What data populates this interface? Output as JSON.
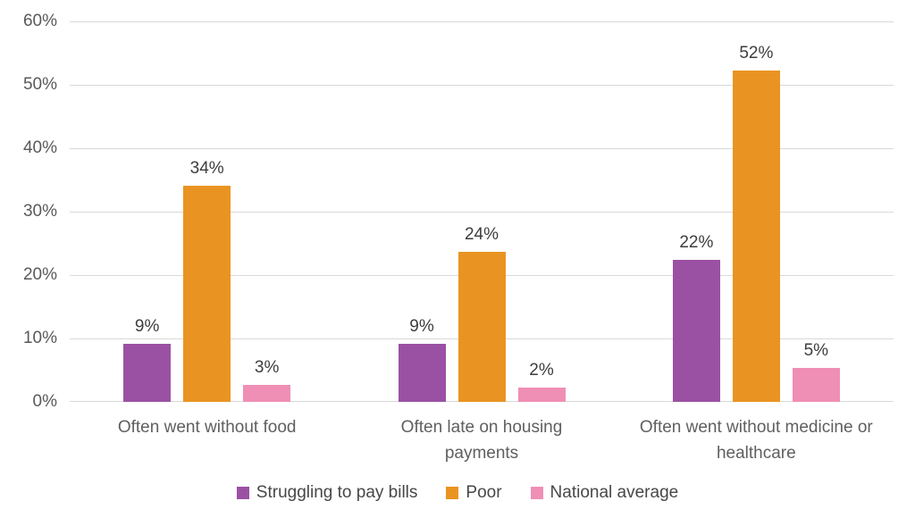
{
  "chart_data": {
    "type": "bar",
    "title": "",
    "categories": [
      "Often went without food",
      "Often late on housing payments",
      "Often went without medicine or healthcare"
    ],
    "category_display_lines": [
      [
        "Often went without food"
      ],
      [
        "Often late on housing",
        "payments"
      ],
      [
        "Often went without medicine or",
        "healthcare"
      ]
    ],
    "series": [
      {
        "name": "Struggling to pay bills",
        "color": "#9B51A3",
        "values": [
          9.2,
          9.1,
          22.4
        ],
        "data_labels": [
          "9%",
          "9%",
          "22%"
        ]
      },
      {
        "name": "Poor",
        "color": "#E99422",
        "values": [
          34.1,
          23.7,
          52.2
        ],
        "data_labels": [
          "34%",
          "24%",
          "52%"
        ]
      },
      {
        "name": "National average",
        "color": "#F08FB6",
        "values": [
          2.7,
          2.2,
          5.3
        ],
        "data_labels": [
          "3%",
          "2%",
          "5%"
        ]
      }
    ],
    "y_axis": {
      "min": 0,
      "max": 60,
      "step": 10,
      "tick_labels": [
        "0%",
        "10%",
        "20%",
        "30%",
        "40%",
        "50%",
        "60%"
      ]
    },
    "grid": true,
    "legend_position": "bottom",
    "colors": {
      "gridline": "#D9D9D9",
      "axis_text": "#595959",
      "category_text": "#5F5F5F",
      "data_label_text": "#3D3D3D",
      "legend_text": "#474747",
      "background": "#FFFFFF"
    }
  }
}
